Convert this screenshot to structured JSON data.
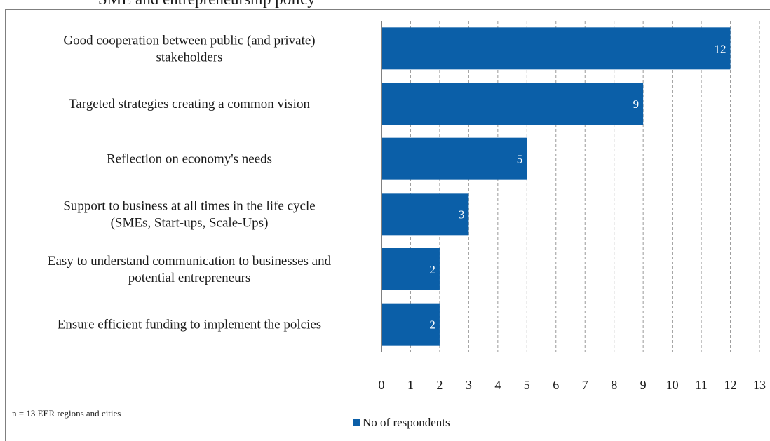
{
  "title_fragment": "SME and entrepreneurship policy",
  "footnote": "n = 13 EER regions and cities",
  "colors": {
    "bar": "#0b5fa8",
    "bar_label": "#ffffff",
    "grid": "#9a9a9a",
    "axis": "#808080"
  },
  "chart_data": {
    "type": "bar",
    "orientation": "horizontal",
    "categories": [
      [
        "Good cooperation between public (and private)",
        "stakeholders"
      ],
      [
        "Targeted strategies creating a common vision"
      ],
      [
        "Reflection on economy's needs"
      ],
      [
        "Support to business at all times in the life cycle",
        "(SMEs, Start-ups, Scale-Ups)"
      ],
      [
        "Easy to understand communication to businesses and",
        "potential entrepreneurs"
      ],
      [
        "Ensure efficient funding to implement the polcies"
      ]
    ],
    "series": [
      {
        "name": "No of respondents",
        "values": [
          12,
          9,
          5,
          3,
          2,
          2
        ]
      }
    ],
    "xlim": [
      0,
      13
    ],
    "xticks": [
      "0",
      "1",
      "2",
      "3",
      "4",
      "5",
      "6",
      "7",
      "8",
      "9",
      "10",
      "11",
      "12",
      "13"
    ],
    "grid": "vertical dashed",
    "data_labels": true,
    "legend": "bottom-center"
  }
}
